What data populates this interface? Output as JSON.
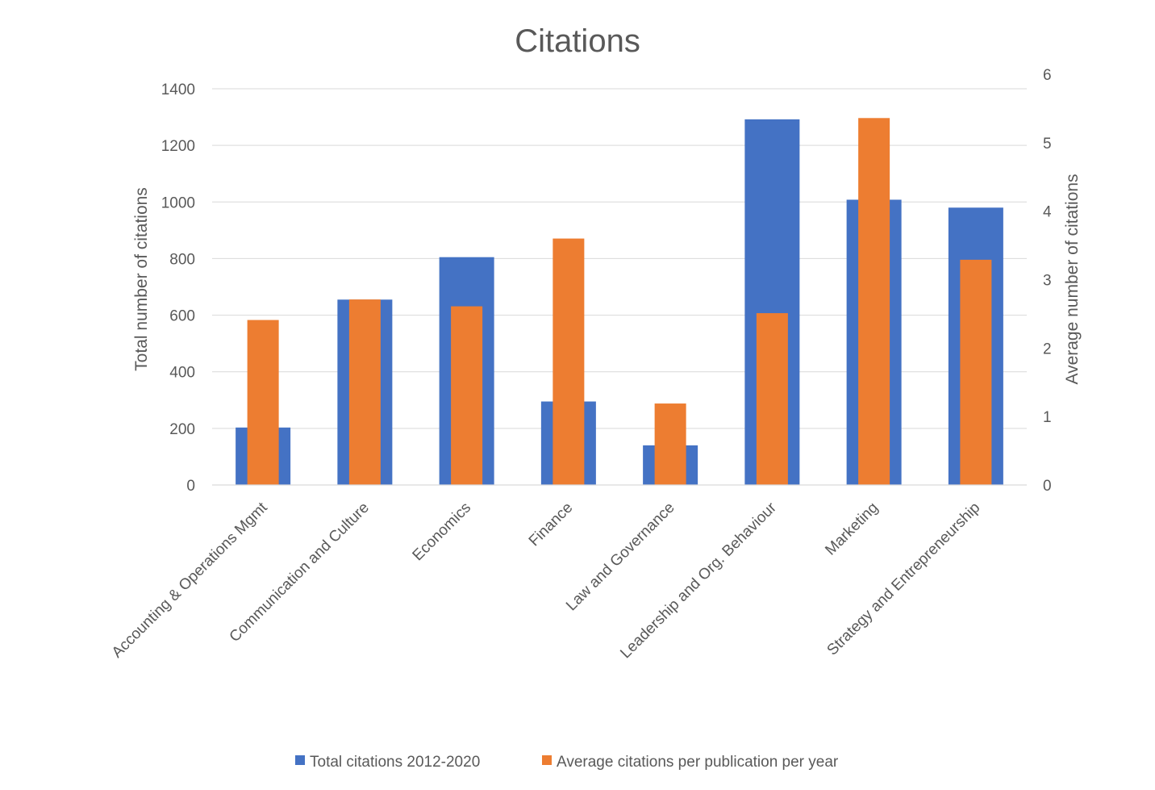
{
  "chart_data": {
    "type": "bar",
    "title": "Citations",
    "categories": [
      "Accounting & Operations Mgmt",
      "Communication and Culture",
      "Economics",
      "Finance",
      "Law and Governance",
      "Leadership and Org. Behaviour",
      "Marketing",
      "Strategy and Entrepreneurship"
    ],
    "series": [
      {
        "name": "Total citations 2012-2020",
        "axis": "primary",
        "color": "#4472c4",
        "values": [
          203,
          655,
          805,
          295,
          140,
          1292,
          1008,
          980
        ]
      },
      {
        "name": "Average citations per publication per year",
        "axis": "secondary",
        "color": "#ed7d31",
        "values": [
          2.41,
          2.71,
          2.61,
          3.6,
          1.19,
          2.51,
          5.36,
          3.29
        ]
      }
    ],
    "ylabel": "Total number of citations",
    "y2label": "Average number of citations",
    "ylim": [
      0,
      1400
    ],
    "y_ticks": [
      "0",
      "200",
      "400",
      "600",
      "800",
      "1000",
      "1200",
      "1400"
    ],
    "y2lim": [
      0,
      6
    ],
    "y2_ticks": [
      "0",
      "1",
      "2",
      "3",
      "4",
      "5",
      "6"
    ],
    "grid": true,
    "legend_position": "bottom"
  }
}
